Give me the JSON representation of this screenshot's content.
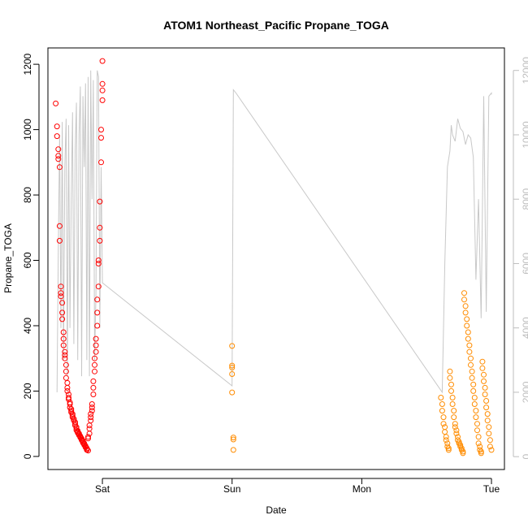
{
  "chart_data": {
    "type": "scatter",
    "title": "ATOM1 Northeast_Pacific Propane_TOGA",
    "xlabel": "Date",
    "ylabel": "Propane_TOGA",
    "x_ticks": [
      "Sat",
      "Sun",
      "Mon",
      "Tue"
    ],
    "xlim": [
      -0.42,
      3.1
    ],
    "ylim": [
      -40,
      1250
    ],
    "y_ticks": [
      0,
      200,
      400,
      600,
      800,
      1000,
      1200
    ],
    "y2lim": [
      -400,
      12700
    ],
    "y2_ticks": [
      0,
      2000,
      4000,
      6000,
      8000,
      10000,
      12000
    ],
    "grid": false,
    "colors": {
      "series1": "#ff0000",
      "series2": "#ff8c00",
      "altitude": "#c8c8c8"
    },
    "series": [
      {
        "color": "#ff0000",
        "x": [
          -0.36,
          -0.35,
          -0.35,
          -0.34,
          -0.34,
          -0.34,
          -0.33,
          -0.33,
          -0.33,
          -0.32,
          -0.32,
          -0.32,
          -0.31,
          -0.31,
          -0.31,
          -0.3,
          -0.3,
          -0.3,
          -0.29,
          -0.29,
          -0.29,
          -0.28,
          -0.28,
          -0.28,
          -0.27,
          -0.27,
          -0.27,
          -0.26,
          -0.26,
          -0.26,
          -0.25,
          -0.25,
          -0.25,
          -0.24,
          -0.24,
          -0.24,
          -0.23,
          -0.23,
          -0.23,
          -0.22,
          -0.22,
          -0.21,
          -0.21,
          -0.21,
          -0.2,
          -0.2,
          -0.2,
          -0.19,
          -0.19,
          -0.19,
          -0.18,
          -0.18,
          -0.18,
          -0.17,
          -0.17,
          -0.17,
          -0.16,
          -0.16,
          -0.16,
          -0.15,
          -0.15,
          -0.15,
          -0.14,
          -0.14,
          -0.14,
          -0.13,
          -0.13,
          -0.13,
          -0.12,
          -0.12,
          -0.12,
          -0.11,
          -0.11,
          -0.11,
          -0.1,
          -0.1,
          -0.1,
          -0.09,
          -0.09,
          -0.09,
          -0.08,
          -0.08,
          -0.08,
          -0.07,
          -0.07,
          -0.07,
          -0.06,
          -0.06,
          -0.06,
          -0.05,
          -0.05,
          -0.05,
          -0.04,
          -0.04,
          -0.04,
          -0.03,
          -0.03,
          -0.03,
          -0.02,
          -0.02,
          -0.02,
          -0.01,
          -0.01,
          -0.01,
          0.0,
          0.0,
          0.0,
          0.0
        ],
        "y": [
          1080,
          1010,
          980,
          940,
          920,
          910,
          885,
          705,
          660,
          520,
          500,
          490,
          470,
          440,
          420,
          380,
          360,
          340,
          320,
          310,
          300,
          280,
          260,
          240,
          225,
          210,
          200,
          190,
          180,
          175,
          165,
          160,
          150,
          145,
          140,
          135,
          130,
          125,
          120,
          115,
          110,
          105,
          100,
          95,
          90,
          85,
          80,
          78,
          75,
          72,
          70,
          68,
          65,
          62,
          60,
          58,
          55,
          52,
          50,
          48,
          45,
          42,
          40,
          38,
          35,
          32,
          30,
          28,
          25,
          22,
          20,
          18,
          60,
          55,
          70,
          85,
          95,
          110,
          120,
          130,
          140,
          150,
          160,
          190,
          210,
          230,
          260,
          280,
          300,
          320,
          340,
          360,
          400,
          440,
          480,
          520,
          590,
          600,
          660,
          700,
          780,
          900,
          975,
          1000,
          1090,
          1120,
          1140,
          1210
        ]
      },
      {
        "color": "#ff8c00",
        "x": [
          1.0,
          1.0,
          1.0,
          1.0,
          1.0,
          1.01,
          1.01,
          1.01,
          2.61,
          2.62,
          2.62,
          2.63,
          2.63,
          2.64,
          2.64,
          2.65,
          2.65,
          2.66,
          2.66,
          2.67,
          2.67,
          2.68,
          2.68,
          2.69,
          2.69,
          2.7,
          2.7,
          2.71,
          2.71,
          2.72,
          2.72,
          2.73,
          2.73,
          2.74,
          2.74,
          2.75,
          2.75,
          2.76,
          2.76,
          2.77,
          2.77,
          2.78,
          2.78,
          2.79,
          2.79,
          2.8,
          2.8,
          2.81,
          2.81,
          2.82,
          2.82,
          2.83,
          2.83,
          2.84,
          2.84,
          2.85,
          2.85,
          2.86,
          2.86,
          2.87,
          2.87,
          2.88,
          2.88,
          2.89,
          2.89,
          2.9,
          2.9,
          2.91,
          2.91,
          2.92,
          2.92,
          2.93,
          2.93,
          2.94,
          2.94,
          2.95,
          2.95,
          2.96,
          2.96,
          2.97,
          2.97,
          2.98,
          2.98,
          2.99,
          2.99,
          3.0
        ],
        "y": [
          338,
          278,
          272,
          252,
          196,
          58,
          52,
          20,
          180,
          160,
          140,
          120,
          100,
          90,
          75,
          60,
          50,
          40,
          30,
          25,
          20,
          260,
          240,
          220,
          200,
          180,
          160,
          140,
          120,
          100,
          90,
          80,
          70,
          60,
          50,
          45,
          40,
          35,
          30,
          25,
          20,
          15,
          10,
          500,
          480,
          460,
          440,
          420,
          400,
          380,
          360,
          340,
          320,
          300,
          280,
          260,
          240,
          220,
          200,
          180,
          160,
          140,
          120,
          100,
          80,
          60,
          40,
          30,
          20,
          15,
          10,
          290,
          270,
          250,
          230,
          210,
          190,
          170,
          150,
          130,
          110,
          90,
          70,
          50,
          30,
          20
        ]
      }
    ],
    "altitude_line": {
      "color": "#c8c8c8",
      "x": [
        -0.35,
        -0.34,
        -0.33,
        -0.32,
        -0.31,
        -0.3,
        -0.29,
        -0.28,
        -0.27,
        -0.26,
        -0.25,
        -0.24,
        -0.23,
        -0.22,
        -0.21,
        -0.2,
        -0.19,
        -0.18,
        -0.17,
        -0.16,
        -0.15,
        -0.14,
        -0.13,
        -0.12,
        -0.11,
        -0.1,
        -0.09,
        -0.08,
        -0.07,
        -0.06,
        -0.05,
        -0.04,
        -0.03,
        -0.02,
        -0.01,
        0.0,
        1.0,
        1.01,
        1.02,
        1.03,
        2.62,
        2.64,
        2.66,
        2.68,
        2.69,
        2.7,
        2.72,
        2.74,
        2.76,
        2.78,
        2.8,
        2.82,
        2.84,
        2.86,
        2.88,
        2.9,
        2.92,
        2.94,
        2.96,
        2.98,
        3.0,
        3.0
      ],
      "y": [
        2000,
        6500,
        10000,
        4000,
        10400,
        3000,
        9000,
        10500,
        2500,
        10300,
        4000,
        8000,
        10700,
        3500,
        9500,
        11000,
        3000,
        10000,
        11500,
        2500,
        11200,
        9000,
        11600,
        3000,
        11800,
        2500,
        12000,
        8000,
        11700,
        3000,
        5000,
        12000,
        11800,
        4000,
        9000,
        5400,
        2200,
        11400,
        11350,
        11300,
        2000,
        6000,
        9000,
        9500,
        10300,
        10000,
        9800,
        10500,
        10200,
        10100,
        9700,
        10000,
        9900,
        9300,
        5500,
        8000,
        4300,
        11200,
        4500,
        11200,
        11300,
        11250
      ]
    }
  }
}
